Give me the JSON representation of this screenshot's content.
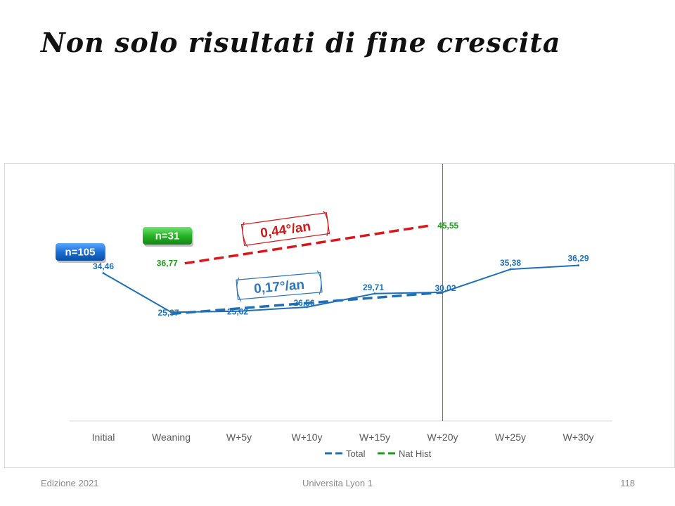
{
  "slide": {
    "title": "Non solo risultati di fine crescita"
  },
  "footer": {
    "left": "Edizione 2021",
    "center": "Universita Lyon 1",
    "right": "118"
  },
  "chart_data": {
    "type": "line",
    "categories": [
      "Initial",
      "Weaning",
      "W+5y",
      "W+10y",
      "W+15y",
      "W+20y",
      "W+25y",
      "W+30y"
    ],
    "ylim": [
      0,
      60
    ],
    "grid": false,
    "legend_position": "bottom",
    "series": [
      {
        "name": "",
        "values": [
          34.46,
          25.37,
          25.62,
          26.56,
          29.71,
          30.02,
          35.38,
          36.29
        ],
        "labels": [
          "34,46",
          "25,37",
          "25,62",
          "26,56",
          "29,71",
          "30,02",
          "35,38",
          "36,29"
        ],
        "color": "#1f6fb5",
        "style": "solid"
      },
      {
        "name": "Total",
        "trend_from": [
          1,
          25.0
        ],
        "trend_to": [
          5,
          30.0
        ],
        "color": "#1f6fb5",
        "style": "dashed"
      },
      {
        "name": "Nat Hist",
        "trend_from": [
          1.2,
          36.77
        ],
        "trend_to": [
          4.8,
          45.55
        ],
        "start_label": "36,77",
        "end_label": "45,55",
        "color": "#d9161b",
        "label_color": "#1e9a1e",
        "legend_color": "#1e9a1e",
        "style": "dashed"
      }
    ],
    "reference_line": {
      "category": 5,
      "color": "#22aa22"
    },
    "annotations": {
      "n_total": "n=105",
      "n_nat": "n=31",
      "slope_blue": "0,17°/an",
      "slope_red": "0,44°/an"
    },
    "colors": {
      "badge_blue": "#1c6fd4",
      "badge_green": "#27b427",
      "scroll_blue": "#2e75b6",
      "scroll_red": "#cc1a1a",
      "axis": "#d9d9d9",
      "tick_text": "#595959"
    }
  }
}
